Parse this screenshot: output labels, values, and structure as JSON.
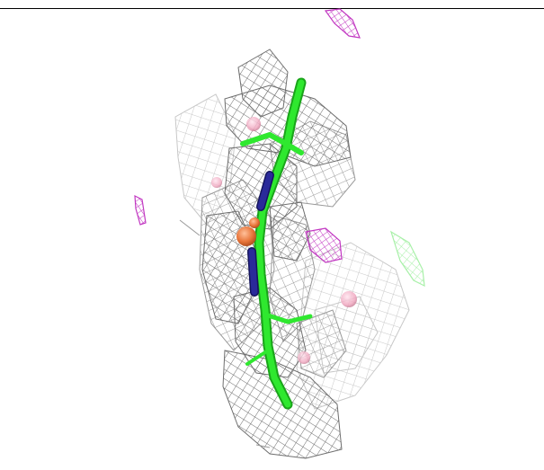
{
  "scene": {
    "background_color": "#ffffff",
    "rule_color": "#000000",
    "mesh_colors": {
      "dark": "#6e6e6e",
      "mid": "#9a9a9a",
      "light": "#c8c8c8"
    },
    "ligand_colors": {
      "carbon": "#2fe82f",
      "nitrogen": "#2a2a9a",
      "phosphorus": "#e8753a",
      "water": "#f0a8c0"
    },
    "difference_map_colors": {
      "positive": "#a8f0a8",
      "negative": "#c238c2"
    }
  }
}
